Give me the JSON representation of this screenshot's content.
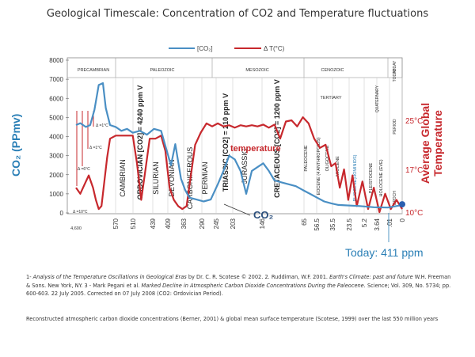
{
  "title": "Geological Timescale: Concentration of CO2 and Temperature fluctuations",
  "legend": {
    "co2": "[CO₂]",
    "temp": "Δ T(°C)"
  },
  "colors": {
    "co2": "#4a8fc4",
    "temp": "#c7282d",
    "grid": "#bbbbbb",
    "text": "#333333"
  },
  "chart_data": {
    "type": "line",
    "ylabel_left": "CO₂ (PPmv)",
    "ylabel_right": "Average Global Temperature",
    "ylim_left": [
      0,
      8000
    ],
    "yticks_left": [
      "0",
      "1000",
      "2000",
      "3000",
      "4000",
      "5000",
      "6000",
      "7000",
      "8000"
    ],
    "temp_ticks": [
      "25°C",
      "17°C",
      "10°C"
    ],
    "x_tick_labels": [
      "4,600",
      "570",
      "510",
      "439",
      "409",
      "363",
      "290",
      "245",
      "203",
      "146",
      "65",
      "56.5",
      "35.5",
      "23.5",
      "5.2",
      "3.64",
      ".01",
      "0"
    ],
    "eras": [
      "PRECAMBRIAN",
      "PALEOZOIC",
      "MESOZOIC",
      "CENOZOIC",
      "TODAY"
    ],
    "right_header_labels": [
      "TODAY",
      "PERIOD",
      "EPOCH"
    ],
    "period_label_tertiary": "TERTIARY",
    "period_label_quaternary": "QUATERNARY",
    "periods": [
      "CAMBRIAN",
      "ORDOVICIAN [CO2] = 4240 ppm V",
      "SILURIAN",
      "DEVONIAN",
      "CARBONIFEROUS",
      "PERMIAN",
      "TRIASSIC [CO2] = 210 ppm V",
      "JURASSIC",
      "CRETACEOUS [CO2] = 1200 ppm V"
    ],
    "epochs": [
      "PALEOCENE",
      "EOCENE (4 ANTHROPOIDS)",
      "OLIGOCENE",
      "MIOCENE",
      "PLIOCENE(HOMINIDS)",
      "PLEISTOCENE",
      "HOLOCENE (EVE)"
    ],
    "annotations": {
      "temperature": "temperature",
      "co2": "CO₂",
      "today": "Today: 411 ppm"
    },
    "dt_labels": [
      "Δ =1°C",
      "Δ =1°C",
      "Δ =6°C",
      "Δ =10°C"
    ],
    "series": [
      {
        "name": "[CO₂]",
        "points": [
          [
            0,
            4600
          ],
          [
            0.3,
            4700
          ],
          [
            0.7,
            4500
          ],
          [
            1,
            4600
          ],
          [
            1.3,
            5400
          ],
          [
            1.6,
            6700
          ],
          [
            1.9,
            6800
          ],
          [
            2.1,
            5500
          ],
          [
            2.4,
            4600
          ],
          [
            2.8,
            4500
          ],
          [
            3.2,
            4300
          ],
          [
            3.6,
            4400
          ],
          [
            4.0,
            4200
          ],
          [
            4.5,
            4300
          ],
          [
            5.0,
            4100
          ],
          [
            5.5,
            4400
          ],
          [
            6.0,
            4300
          ],
          [
            6.5,
            3000
          ],
          [
            6.7,
            2500
          ],
          [
            7.0,
            3600
          ],
          [
            7.4,
            1800
          ],
          [
            7.7,
            1200
          ],
          [
            8.0,
            800
          ],
          [
            8.5,
            700
          ],
          [
            9.0,
            600
          ],
          [
            9.5,
            700
          ],
          [
            10.0,
            1500
          ],
          [
            10.4,
            2200
          ],
          [
            10.8,
            3000
          ],
          [
            11.2,
            2800
          ],
          [
            11.6,
            2200
          ],
          [
            12.0,
            1000
          ],
          [
            12.4,
            2200
          ],
          [
            12.8,
            2400
          ],
          [
            13.2,
            2600
          ],
          [
            13.6,
            2200
          ],
          [
            14.0,
            1700
          ],
          [
            14.5,
            1600
          ],
          [
            15.0,
            1500
          ],
          [
            15.5,
            1400
          ],
          [
            16.0,
            1200
          ],
          [
            16.5,
            1000
          ],
          [
            17.0,
            800
          ],
          [
            17.5,
            600
          ],
          [
            18.0,
            500
          ],
          [
            18.5,
            420
          ],
          [
            19.0,
            400
          ],
          [
            20.0,
            360
          ],
          [
            21.0,
            300
          ],
          [
            22.0,
            280
          ],
          [
            23.0,
            411
          ]
        ]
      },
      {
        "name": "Δ T(°C)",
        "points": [
          [
            0,
            14
          ],
          [
            0.3,
            13
          ],
          [
            0.6,
            14.5
          ],
          [
            0.9,
            16
          ],
          [
            1.2,
            14
          ],
          [
            1.4,
            12
          ],
          [
            1.6,
            10.5
          ],
          [
            1.8,
            11
          ],
          [
            2.0,
            15
          ],
          [
            2.2,
            19
          ],
          [
            2.4,
            22
          ],
          [
            2.8,
            22.5
          ],
          [
            3.2,
            22.5
          ],
          [
            3.6,
            22.5
          ],
          [
            4.0,
            22.5
          ],
          [
            4.3,
            18
          ],
          [
            4.6,
            12
          ],
          [
            4.9,
            17
          ],
          [
            5.2,
            22
          ],
          [
            5.6,
            22
          ],
          [
            6.0,
            22.5
          ],
          [
            6.3,
            20
          ],
          [
            6.6,
            14
          ],
          [
            6.9,
            12
          ],
          [
            7.2,
            11
          ],
          [
            7.5,
            10.5
          ],
          [
            7.8,
            11
          ],
          [
            8.1,
            16
          ],
          [
            8.4,
            21
          ],
          [
            8.8,
            23
          ],
          [
            9.2,
            24.5
          ],
          [
            9.6,
            24
          ],
          [
            10.0,
            24.5
          ],
          [
            10.4,
            24
          ],
          [
            10.8,
            24.2
          ],
          [
            11.2,
            23.8
          ],
          [
            11.6,
            24.2
          ],
          [
            12.0,
            24
          ],
          [
            12.4,
            24.2
          ],
          [
            12.8,
            24
          ],
          [
            13.2,
            24.3
          ],
          [
            13.6,
            23.8
          ],
          [
            14.0,
            24.3
          ],
          [
            14.4,
            22
          ],
          [
            14.8,
            24.8
          ],
          [
            15.2,
            25
          ],
          [
            15.6,
            24
          ],
          [
            16.0,
            25.5
          ],
          [
            16.4,
            24.5
          ],
          [
            16.8,
            22
          ],
          [
            17.2,
            20.5
          ],
          [
            17.6,
            21
          ],
          [
            18.0,
            17.5
          ],
          [
            18.3,
            18
          ],
          [
            18.6,
            14
          ],
          [
            18.9,
            17
          ],
          [
            19.2,
            12
          ],
          [
            19.5,
            16
          ],
          [
            19.8,
            11
          ],
          [
            20.2,
            15
          ],
          [
            20.6,
            10.5
          ],
          [
            21.0,
            14
          ],
          [
            21.4,
            10
          ],
          [
            21.8,
            13
          ],
          [
            22.2,
            10.5
          ],
          [
            22.6,
            12
          ],
          [
            23.0,
            10.5
          ]
        ]
      }
    ]
  },
  "caption": {
    "p1_prefix": "1- ",
    "p1_italic": "Analysis of the Temperature Oscillations in Geological Eras",
    "p1_rest": " by Dr. C. R. Scotese ©  2002. 2. Ruddiman, W.F. 2001. ",
    "p1_italic2": "Earth's Climate: past and future",
    "p1_rest2": " W.H. Freeman & Sons. New York, NY. 3   - Mark Pegani et al. ",
    "p1_italic3": "Marked Decline in Atmospheric Carbon Dioxide Concentrations During the Paleocene.",
    "p1_rest3": " Science; Vol. 309, No. 5734; pp. 600-603. 22 July 2005. Corrected on 07 July 2008 (CO2: Ordovician Period).",
    "p2": "Reconstructed atmospheric carbon dioxide concentrations (Berner, 2001) & global mean surface temperature (Scotese, 1999) over   the last 550 million years"
  }
}
